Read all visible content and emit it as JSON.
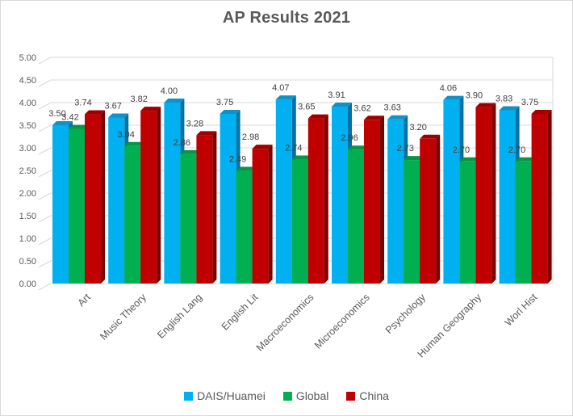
{
  "title": "AP Results 2021",
  "chart_data": {
    "type": "bar",
    "subtype": "3d-clustered-column",
    "title": "AP Results 2021",
    "categories": [
      "Art",
      "Music Theory",
      "English Lang",
      "English Lit",
      "Macroeconomics",
      "Microeconomics",
      "Psychology",
      "Human Geography",
      "Worl Hist"
    ],
    "series": [
      {
        "name": "DAIS/Huamei",
        "color": "#00B0F0",
        "color_top": "#1191C4",
        "color_side": "#0272A3",
        "values": [
          3.5,
          3.67,
          4.0,
          3.75,
          4.07,
          3.91,
          3.63,
          4.06,
          3.83
        ]
      },
      {
        "name": "Global",
        "color": "#00B050",
        "color_top": "#0D9348",
        "color_side": "#00703A",
        "values": [
          3.42,
          3.04,
          2.86,
          2.49,
          2.74,
          2.96,
          2.73,
          2.7,
          2.7
        ]
      },
      {
        "name": "China",
        "color": "#C00000",
        "color_top": "#9E0000",
        "color_side": "#7A0000",
        "values": [
          3.74,
          3.82,
          3.28,
          2.98,
          3.65,
          3.62,
          3.2,
          3.9,
          3.75
        ]
      }
    ],
    "ylim": [
      0,
      5
    ],
    "ytick_step": 0.5,
    "ytick_labels": [
      "0.00",
      "0.50",
      "1.00",
      "1.50",
      "2.00",
      "2.50",
      "3.00",
      "3.50",
      "4.00",
      "4.50",
      "5.00"
    ],
    "grid": true,
    "data_labels": true,
    "label_format": "0.00",
    "legend_position": "bottom"
  },
  "colors": {
    "background": "#FFFFFF",
    "border": "#D9D9D9",
    "gridline": "#D9D9D9",
    "title_text": "#595959",
    "axis_text": "#595959",
    "data_label_text": "#3F3F3F"
  }
}
